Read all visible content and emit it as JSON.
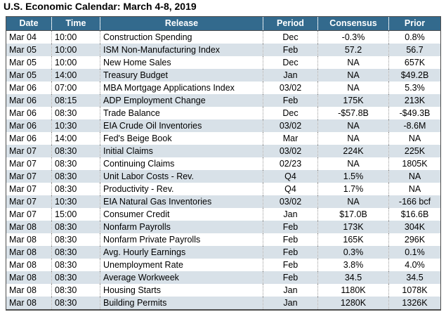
{
  "page": {
    "title": "U.S. Economic Calendar: March 4-8, 2019"
  },
  "colors": {
    "header_bg": "#336A8D",
    "header_text": "#ffffff",
    "alt_row_bg": "#D8E1E8",
    "row_bg": "#FFFFFF",
    "outer_border": "#4d4d4d",
    "column_separator_dotted": "#9a9a9a"
  },
  "chart_data": {
    "type": "table",
    "title": "U.S. Economic Calendar: March 4-8, 2019",
    "columns": [
      "Date",
      "Time",
      "Release",
      "Period",
      "Consensus",
      "Prior"
    ],
    "rows": [
      [
        "Mar 04",
        "10:00",
        "Construction Spending",
        "Dec",
        "-0.3%",
        "0.8%"
      ],
      [
        "Mar 05",
        "10:00",
        "ISM Non-Manufacturing Index",
        "Feb",
        "57.2",
        "56.7"
      ],
      [
        "Mar 05",
        "10:00",
        "New Home Sales",
        "Dec",
        "NA",
        "657K"
      ],
      [
        "Mar 05",
        "14:00",
        "Treasury Budget",
        "Jan",
        "NA",
        "$49.2B"
      ],
      [
        "Mar 06",
        "07:00",
        "MBA Mortgage Applications Index",
        "03/02",
        "NA",
        "5.3%"
      ],
      [
        "Mar 06",
        "08:15",
        "ADP Employment Change",
        "Feb",
        "175K",
        "213K"
      ],
      [
        "Mar 06",
        "08:30",
        "Trade Balance",
        "Dec",
        "-$57.8B",
        "-$49.3B"
      ],
      [
        "Mar 06",
        "10:30",
        "EIA Crude Oil Inventories",
        "03/02",
        "NA",
        "-8.6M"
      ],
      [
        "Mar 06",
        "14:00",
        "Fed's Beige Book",
        "Mar",
        "NA",
        "NA"
      ],
      [
        "Mar 07",
        "08:30",
        "Initial Claims",
        "03/02",
        "224K",
        "225K"
      ],
      [
        "Mar 07",
        "08:30",
        "Continuing Claims",
        "02/23",
        "NA",
        "1805K"
      ],
      [
        "Mar 07",
        "08:30",
        "Unit Labor Costs - Rev.",
        "Q4",
        "1.5%",
        "NA"
      ],
      [
        "Mar 07",
        "08:30",
        "Productivity - Rev.",
        "Q4",
        "1.7%",
        "NA"
      ],
      [
        "Mar 07",
        "10:30",
        "EIA Natural Gas Inventories",
        "03/02",
        "NA",
        "-166 bcf"
      ],
      [
        "Mar 07",
        "15:00",
        "Consumer Credit",
        "Jan",
        "$17.0B",
        "$16.6B"
      ],
      [
        "Mar 08",
        "08:30",
        "Nonfarm Payrolls",
        "Feb",
        "173K",
        "304K"
      ],
      [
        "Mar 08",
        "08:30",
        "Nonfarm Private Payrolls",
        "Feb",
        "165K",
        "296K"
      ],
      [
        "Mar 08",
        "08:30",
        "Avg. Hourly Earnings",
        "Feb",
        "0.3%",
        "0.1%"
      ],
      [
        "Mar 08",
        "08:30",
        "Unemployment Rate",
        "Feb",
        "3.8%",
        "4.0%"
      ],
      [
        "Mar 08",
        "08:30",
        "Average Workweek",
        "Feb",
        "34.5",
        "34.5"
      ],
      [
        "Mar 08",
        "08:30",
        "Housing Starts",
        "Jan",
        "1180K",
        "1078K"
      ],
      [
        "Mar 08",
        "08:30",
        "Building Permits",
        "Jan",
        "1280K",
        "1326K"
      ]
    ]
  }
}
